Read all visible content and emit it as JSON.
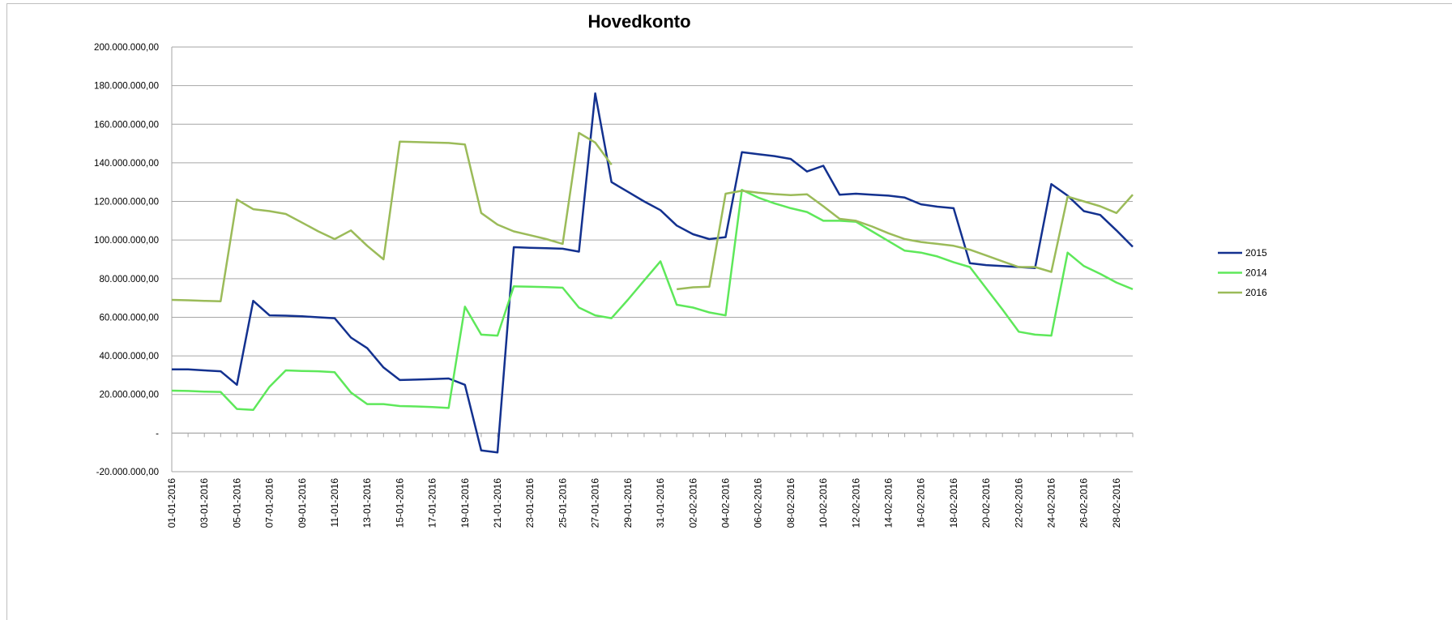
{
  "chart_data": {
    "type": "line",
    "title": "Hovedkonto",
    "categories": [
      "01-01-2016",
      null,
      "03-01-2016",
      null,
      "05-01-2016",
      null,
      "07-01-2016",
      null,
      "09-01-2016",
      null,
      "11-01-2016",
      null,
      "13-01-2016",
      null,
      "15-01-2016",
      null,
      "17-01-2016",
      null,
      "19-01-2016",
      null,
      "21-01-2016",
      null,
      "23-01-2016",
      null,
      "25-01-2016",
      null,
      "27-01-2016",
      null,
      "29-01-2016",
      null,
      "31-01-2016",
      null,
      "02-02-2016",
      null,
      "04-02-2016",
      null,
      "06-02-2016",
      null,
      "08-02-2016",
      null,
      "10-02-2016",
      null,
      "12-02-2016",
      null,
      "14-02-2016",
      null,
      "16-02-2016",
      null,
      "18-02-2016",
      null,
      "20-02-2016",
      null,
      "22-02-2016",
      null,
      "24-02-2016",
      null,
      "26-02-2016",
      null,
      "28-02-2016",
      null
    ],
    "series": [
      {
        "name": "2015",
        "color": "#13318f",
        "values": [
          33000000,
          33000000,
          32500000,
          32000000,
          25000000,
          68500000,
          61000000,
          60800000,
          60500000,
          60000000,
          59500000,
          49500000,
          44000000,
          34000000,
          27500000,
          27700000,
          28000000,
          28300000,
          25000000,
          -9000000,
          -10000000,
          96300000,
          96000000,
          95800000,
          95500000,
          94000000,
          176000000,
          130000000,
          125000000,
          120000000,
          115500000,
          107500000,
          103000000,
          100500000,
          101500000,
          145500000,
          144500000,
          143500000,
          142000000,
          135500000,
          138500000,
          123500000,
          124000000,
          123500000,
          123000000,
          122000000,
          118500000,
          117300000,
          116500000,
          88000000,
          87000000,
          86500000,
          86000000,
          85500000,
          129000000,
          123000000,
          115000000,
          113000000,
          105000000,
          96500000
        ]
      },
      {
        "name": "2014",
        "color": "#5ee85a",
        "values": [
          22000000,
          21800000,
          21500000,
          21300000,
          12500000,
          12000000,
          24000000,
          32500000,
          32200000,
          32000000,
          31500000,
          21000000,
          15000000,
          15000000,
          14000000,
          13800000,
          13500000,
          13000000,
          65500000,
          51000000,
          50500000,
          76000000,
          75800000,
          75600000,
          75300000,
          65000000,
          61000000,
          59500000,
          69000000,
          79000000,
          89000000,
          66500000,
          65000000,
          62500000,
          61000000,
          126000000,
          122000000,
          119000000,
          116500000,
          114500000,
          110000000,
          110000000,
          109500000,
          104500000,
          99500000,
          94500000,
          93500000,
          91500000,
          88500000,
          86000000,
          75000000,
          64000000,
          52500000,
          51000000,
          50500000,
          93500000,
          86500000,
          82500000,
          78000000,
          74500000
        ]
      },
      {
        "name": "2016",
        "color": "#9bbb59",
        "values": [
          69000000,
          68800000,
          68500000,
          68300000,
          121000000,
          116000000,
          115000000,
          113500000,
          109000000,
          104500000,
          100500000,
          105000000,
          97000000,
          90000000,
          151000000,
          150800000,
          150500000,
          150300000,
          149500000,
          114000000,
          108000000,
          104500000,
          102500000,
          100500000,
          98000000,
          155500000,
          150500000,
          139000000,
          null,
          null,
          null,
          74500000,
          75500000,
          75800000,
          124000000,
          125500000,
          124500000,
          123800000,
          123300000,
          123700000,
          117500000,
          111000000,
          110000000,
          107000000,
          103500000,
          100500000,
          99000000,
          98000000,
          97000000,
          95000000,
          92000000,
          89000000,
          86000000,
          86000000,
          83500000,
          122500000,
          120000000,
          117500000,
          114000000,
          123500000
        ]
      }
    ],
    "ylim": [
      -20000000,
      200000000
    ],
    "yticks": [
      {
        "value": -20000000,
        "label": "-20.000.000,00"
      },
      {
        "value": 0,
        "label": "-"
      },
      {
        "value": 20000000,
        "label": "20.000.000,00"
      },
      {
        "value": 40000000,
        "label": "40.000.000,00"
      },
      {
        "value": 60000000,
        "label": "60.000.000,00"
      },
      {
        "value": 80000000,
        "label": "80.000.000,00"
      },
      {
        "value": 100000000,
        "label": "100.000.000,00"
      },
      {
        "value": 120000000,
        "label": "120.000.000,00"
      },
      {
        "value": 140000000,
        "label": "140.000.000,00"
      },
      {
        "value": 160000000,
        "label": "160.000.000,00"
      },
      {
        "value": 180000000,
        "label": "180.000.000,00"
      },
      {
        "value": 200000000,
        "label": "200.000.000,00"
      }
    ],
    "grid": true,
    "legend": "right"
  }
}
